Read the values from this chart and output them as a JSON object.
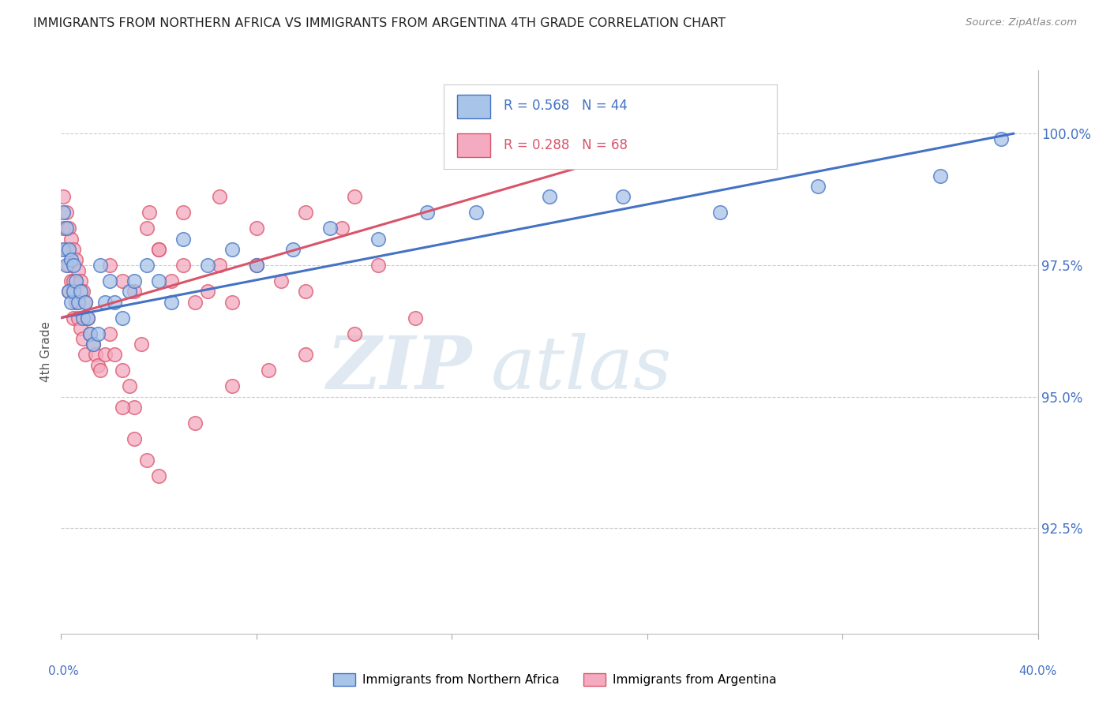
{
  "title": "IMMIGRANTS FROM NORTHERN AFRICA VS IMMIGRANTS FROM ARGENTINA 4TH GRADE CORRELATION CHART",
  "source": "Source: ZipAtlas.com",
  "ylabel": "4th Grade",
  "x_label_bottom_left": "0.0%",
  "x_label_bottom_right": "40.0%",
  "y_tick_labels": [
    "100.0%",
    "97.5%",
    "95.0%",
    "92.5%"
  ],
  "y_tick_values": [
    1.0,
    0.975,
    0.95,
    0.925
  ],
  "xlim": [
    0.0,
    0.4
  ],
  "ylim": [
    0.905,
    1.012
  ],
  "blue_R": 0.568,
  "blue_N": 44,
  "pink_R": 0.288,
  "pink_N": 68,
  "blue_color": "#a8c4e8",
  "pink_color": "#f4aac0",
  "blue_line_color": "#4472c4",
  "pink_line_color": "#d9546a",
  "watermark_zip": "ZIP",
  "watermark_atlas": "atlas",
  "background_color": "#ffffff",
  "grid_color": "#cccccc",
  "blue_legend_label": "R = 0.568   N = 44",
  "pink_legend_label": "R = 0.288   N = 68",
  "legend_blue_label": "Immigrants from Northern Africa",
  "legend_pink_label": "Immigrants from Argentina",
  "blue_x": [
    0.001,
    0.001,
    0.002,
    0.002,
    0.003,
    0.003,
    0.004,
    0.004,
    0.005,
    0.005,
    0.006,
    0.007,
    0.008,
    0.009,
    0.01,
    0.011,
    0.012,
    0.013,
    0.015,
    0.016,
    0.018,
    0.02,
    0.022,
    0.025,
    0.028,
    0.03,
    0.035,
    0.04,
    0.045,
    0.05,
    0.06,
    0.07,
    0.08,
    0.095,
    0.11,
    0.13,
    0.15,
    0.17,
    0.2,
    0.23,
    0.27,
    0.31,
    0.36,
    0.385
  ],
  "blue_y": [
    0.985,
    0.978,
    0.982,
    0.975,
    0.978,
    0.97,
    0.976,
    0.968,
    0.975,
    0.97,
    0.972,
    0.968,
    0.97,
    0.965,
    0.968,
    0.965,
    0.962,
    0.96,
    0.962,
    0.975,
    0.968,
    0.972,
    0.968,
    0.965,
    0.97,
    0.972,
    0.975,
    0.972,
    0.968,
    0.98,
    0.975,
    0.978,
    0.975,
    0.978,
    0.982,
    0.98,
    0.985,
    0.985,
    0.988,
    0.988,
    0.985,
    0.99,
    0.992,
    0.999
  ],
  "pink_x": [
    0.001,
    0.001,
    0.002,
    0.002,
    0.003,
    0.003,
    0.003,
    0.004,
    0.004,
    0.005,
    0.005,
    0.005,
    0.006,
    0.006,
    0.007,
    0.007,
    0.008,
    0.008,
    0.009,
    0.009,
    0.01,
    0.01,
    0.011,
    0.012,
    0.013,
    0.014,
    0.015,
    0.016,
    0.018,
    0.02,
    0.022,
    0.025,
    0.028,
    0.03,
    0.033,
    0.036,
    0.04,
    0.045,
    0.05,
    0.055,
    0.06,
    0.065,
    0.07,
    0.08,
    0.09,
    0.1,
    0.115,
    0.13,
    0.02,
    0.025,
    0.03,
    0.035,
    0.04,
    0.05,
    0.065,
    0.08,
    0.1,
    0.12,
    0.025,
    0.03,
    0.035,
    0.04,
    0.055,
    0.07,
    0.085,
    0.1,
    0.12,
    0.145
  ],
  "pink_y": [
    0.988,
    0.982,
    0.985,
    0.978,
    0.982,
    0.975,
    0.97,
    0.98,
    0.972,
    0.978,
    0.972,
    0.965,
    0.976,
    0.968,
    0.974,
    0.965,
    0.972,
    0.963,
    0.97,
    0.961,
    0.968,
    0.958,
    0.965,
    0.962,
    0.96,
    0.958,
    0.956,
    0.955,
    0.958,
    0.962,
    0.958,
    0.955,
    0.952,
    0.948,
    0.96,
    0.985,
    0.978,
    0.972,
    0.975,
    0.968,
    0.97,
    0.975,
    0.968,
    0.975,
    0.972,
    0.97,
    0.982,
    0.975,
    0.975,
    0.972,
    0.97,
    0.982,
    0.978,
    0.985,
    0.988,
    0.982,
    0.985,
    0.988,
    0.948,
    0.942,
    0.938,
    0.935,
    0.945,
    0.952,
    0.955,
    0.958,
    0.962,
    0.965
  ]
}
